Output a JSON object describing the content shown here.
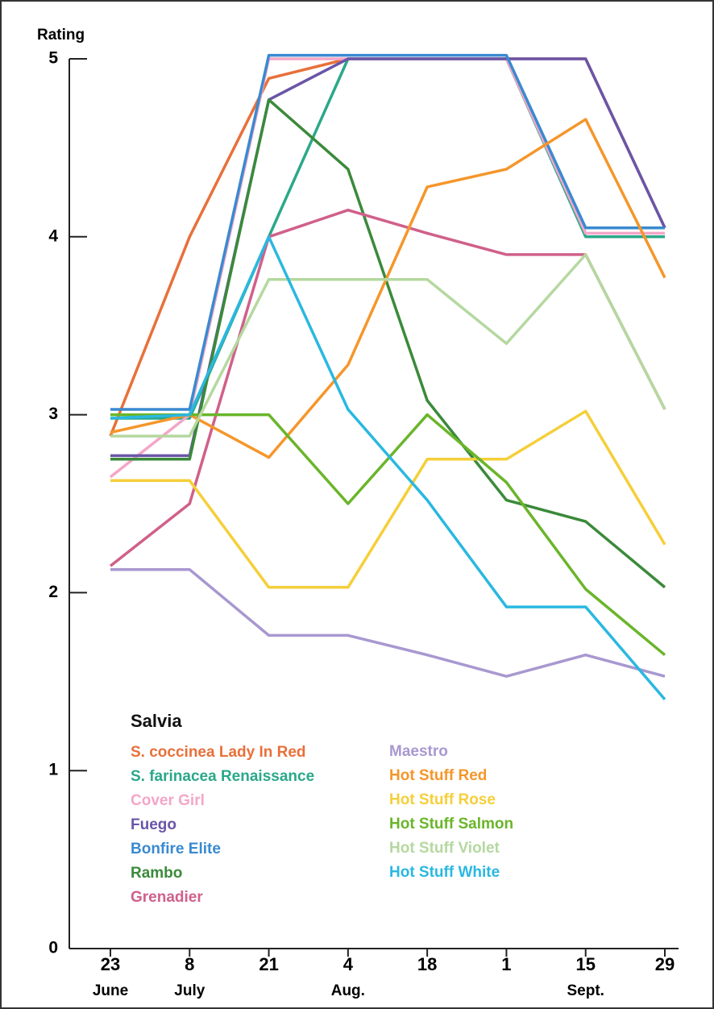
{
  "chart_data": {
    "type": "line",
    "ylabel": "Rating",
    "legend_title": "Salvia",
    "categories": [
      "23",
      "8",
      "21",
      "4",
      "18",
      "1",
      "15",
      "29"
    ],
    "month_labels": [
      "June",
      "July",
      null,
      "Aug.",
      null,
      null,
      "Sept.",
      null
    ],
    "ylim": [
      0,
      5
    ],
    "yticks": [
      0,
      1,
      2,
      3,
      4,
      5
    ],
    "series": [
      {
        "name": "S. coccinea Lady In Red",
        "color": "#e8703a",
        "values": [
          2.88,
          4.0,
          4.89,
          5.0,
          5.0,
          5.0,
          5.0,
          4.05
        ]
      },
      {
        "name": "S. farinacea Renaissance",
        "color": "#2aa88a",
        "values": [
          2.98,
          2.98,
          4.0,
          5.0,
          5.0,
          5.0,
          4.0,
          4.0
        ]
      },
      {
        "name": "Cover Girl",
        "color": "#f4a6c8",
        "values": [
          2.65,
          3.0,
          5.0,
          5.0,
          5.0,
          5.0,
          4.02,
          4.02
        ]
      },
      {
        "name": "Fuego",
        "color": "#6a55a8",
        "values": [
          2.77,
          2.77,
          4.77,
          5.0,
          5.0,
          5.0,
          5.0,
          4.05
        ]
      },
      {
        "name": "Bonfire Elite",
        "color": "#3a8ad0",
        "values": [
          3.03,
          3.03,
          5.02,
          5.02,
          5.02,
          5.02,
          4.05,
          4.05
        ]
      },
      {
        "name": "Rambo",
        "color": "#3a8a3a",
        "values": [
          2.75,
          2.75,
          4.77,
          4.38,
          3.08,
          2.52,
          2.4,
          2.03
        ]
      },
      {
        "name": "Grenadier",
        "color": "#d0608a",
        "values": [
          2.15,
          2.5,
          4.0,
          4.15,
          4.02,
          3.9,
          3.9,
          3.03
        ]
      },
      {
        "name": "Maestro",
        "color": "#a898d0",
        "values": [
          2.13,
          2.13,
          1.76,
          1.76,
          1.65,
          1.53,
          1.65,
          1.53
        ]
      },
      {
        "name": "Hot Stuff Red",
        "color": "#f5962a",
        "values": [
          2.9,
          3.0,
          2.76,
          3.28,
          4.28,
          4.38,
          4.66,
          3.77
        ]
      },
      {
        "name": "Hot Stuff Rose",
        "color": "#f5cf3a",
        "values": [
          2.63,
          2.63,
          2.03,
          2.03,
          2.75,
          2.75,
          3.02,
          2.27
        ]
      },
      {
        "name": "Hot Stuff Salmon",
        "color": "#6ab52a",
        "values": [
          3.0,
          3.0,
          3.0,
          2.5,
          3.0,
          2.62,
          2.02,
          1.65
        ]
      },
      {
        "name": "Hot Stuff Violet",
        "color": "#b5d8a0",
        "values": [
          2.88,
          2.88,
          3.76,
          3.76,
          3.76,
          3.4,
          3.9,
          3.03
        ]
      },
      {
        "name": "Hot Stuff White",
        "color": "#2ab8e0",
        "values": [
          2.98,
          3.0,
          4.0,
          3.03,
          2.52,
          1.92,
          1.92,
          1.4
        ]
      }
    ]
  }
}
